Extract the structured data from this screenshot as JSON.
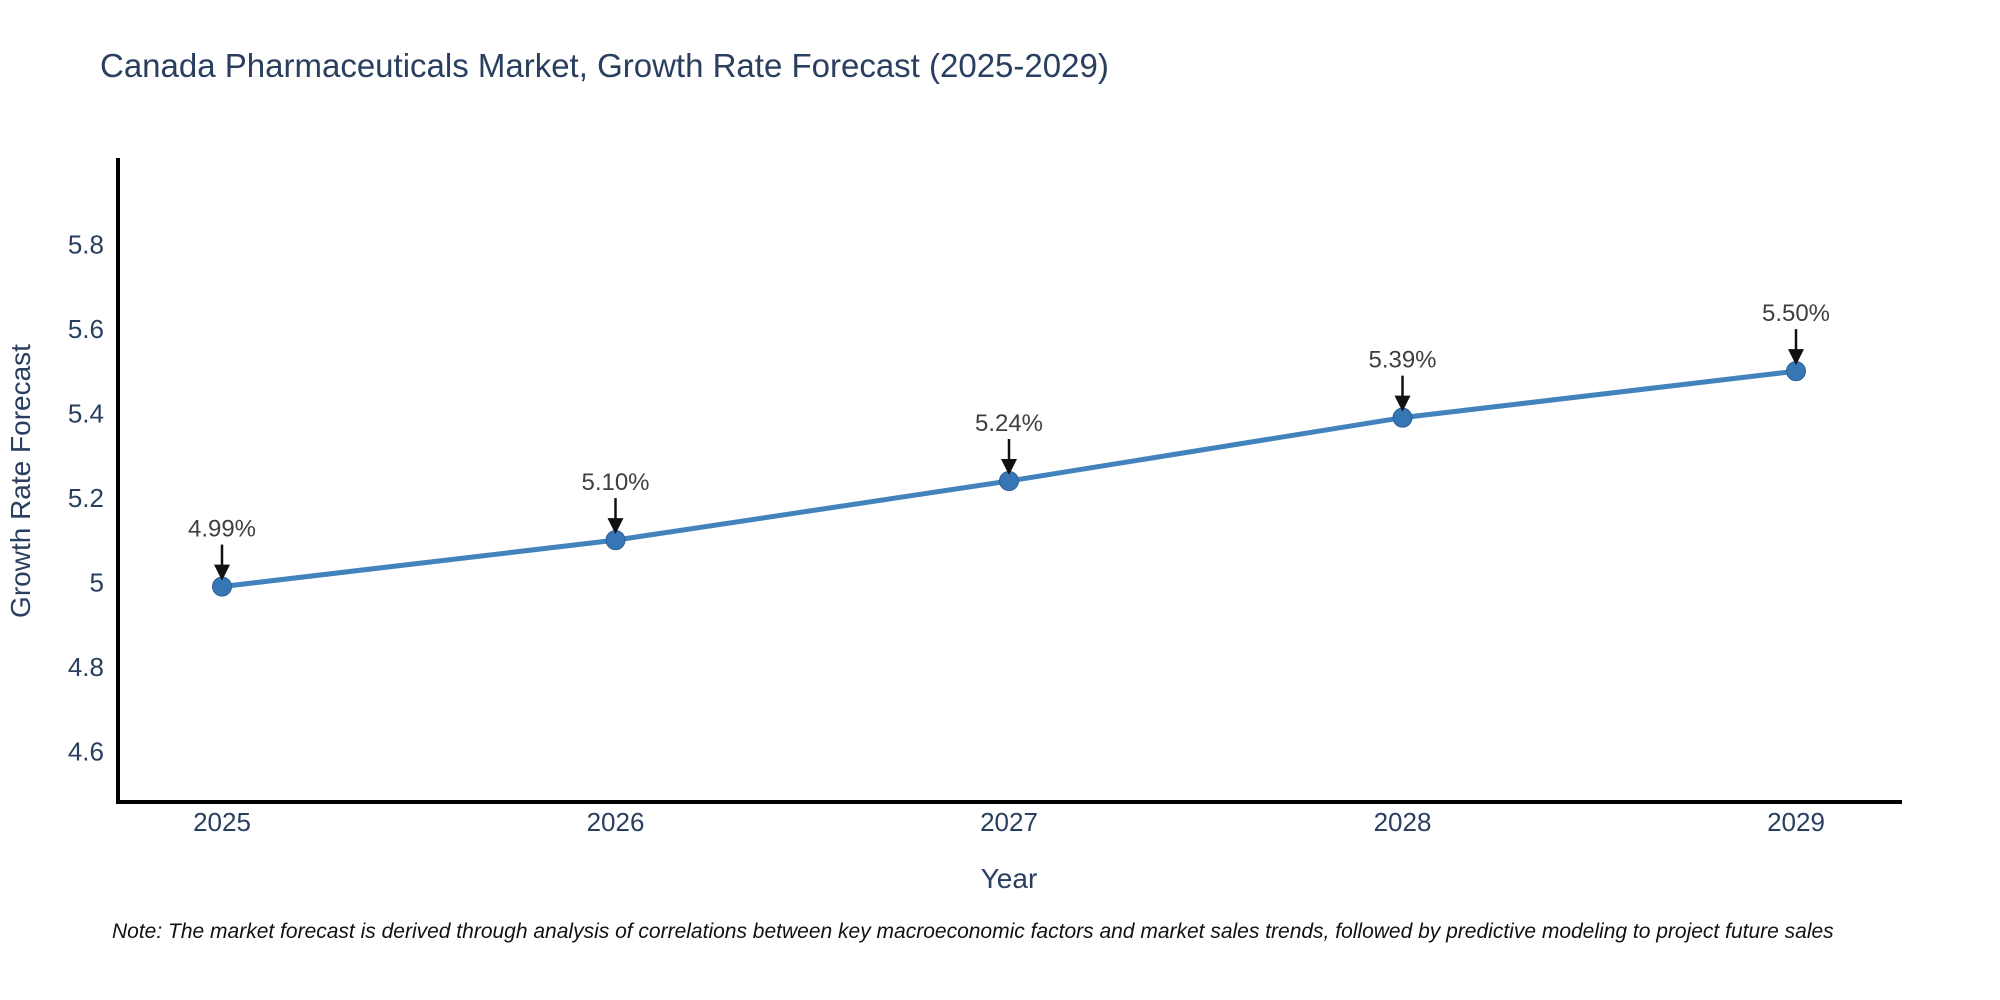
{
  "page": {
    "note": "Note: The market forecast is derived through analysis of correlations between key macroeconomic factors and market sales trends, followed by predictive modeling to project future sales"
  },
  "chart_data": {
    "type": "line",
    "title": "Canada Pharmaceuticals Market, Growth Rate Forecast (2025-2029)",
    "xlabel": "Year",
    "ylabel": "Growth Rate Forecast",
    "x": [
      2025,
      2026,
      2027,
      2028,
      2029
    ],
    "series": [
      {
        "name": "Growth Rate Forecast",
        "values": [
          4.99,
          5.1,
          5.24,
          5.39,
          5.5
        ]
      }
    ],
    "point_labels": [
      "4.99%",
      "5.10%",
      "5.24%",
      "5.39%",
      "5.50%"
    ],
    "xtick_labels": [
      "2025",
      "2026",
      "2027",
      "2028",
      "2029"
    ],
    "yticks": [
      4.6,
      4.8,
      5.0,
      5.2,
      5.4,
      5.6,
      5.8
    ],
    "ytick_labels": [
      "4.6",
      "4.8",
      "5",
      "5.2",
      "5.4",
      "5.6",
      "5.8"
    ],
    "ylim": [
      4.48,
      6.0
    ],
    "grid": false,
    "legend": "none",
    "colors": {
      "line": "#4383bd",
      "marker": "#3776b4",
      "marker_stroke": "#2a6099",
      "axis": "#000000",
      "text": "#2a3f5f",
      "annotation_text": "#3f3f3f",
      "arrow": "#111111",
      "note_text": "#111111"
    }
  }
}
